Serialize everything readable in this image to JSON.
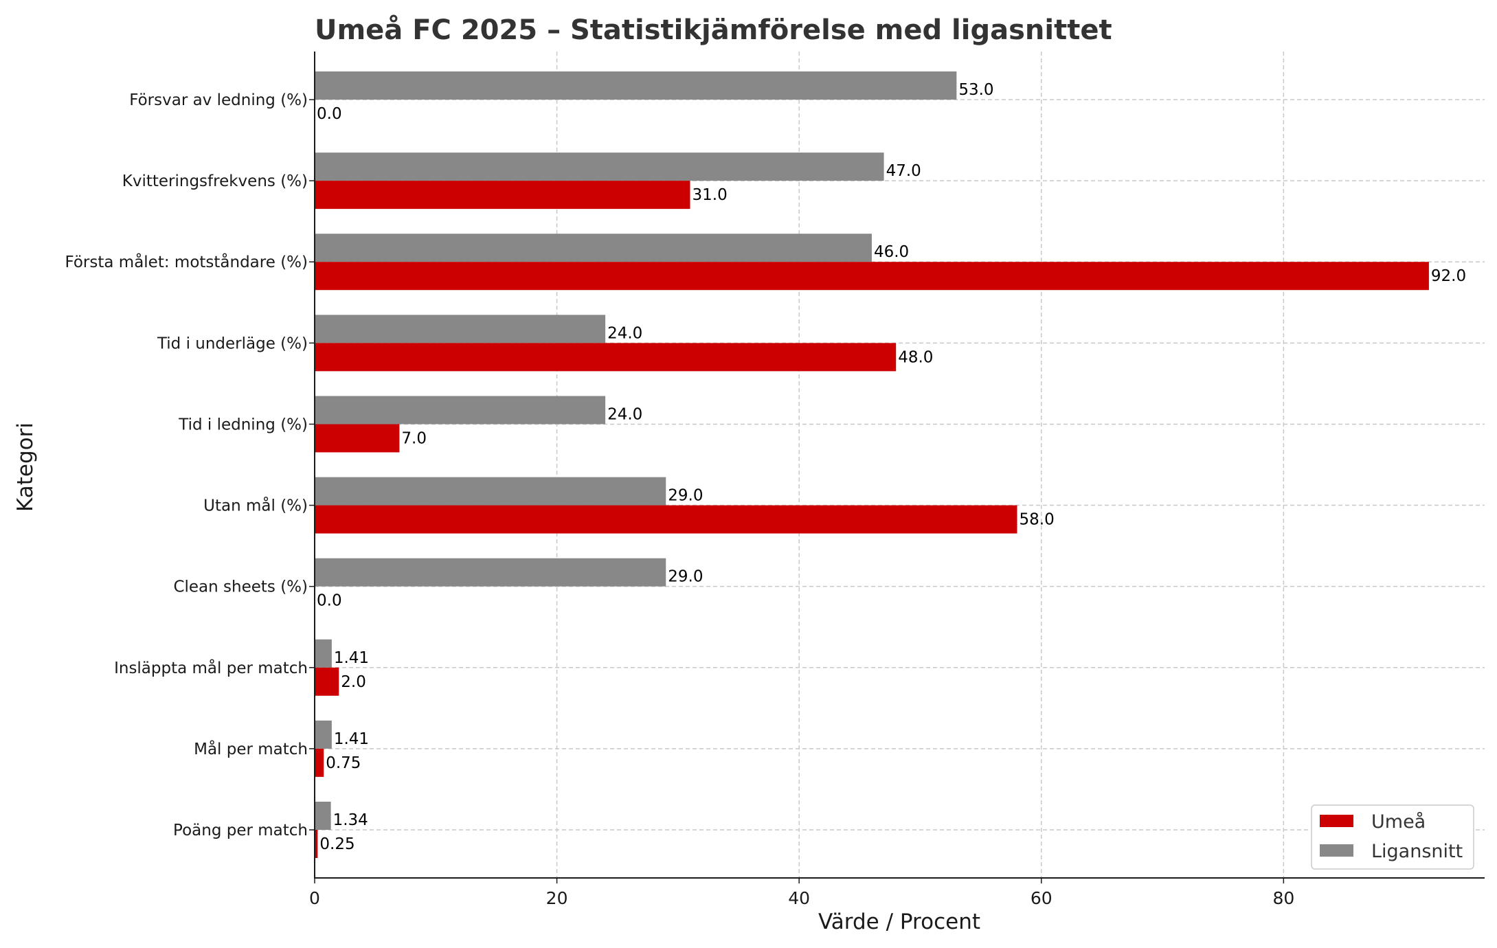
{
  "colors": {
    "umea": "#cc0000",
    "liga": "#888888",
    "grid": "#c8c8c8",
    "axis": "#1a1a1a",
    "title": "#333333"
  },
  "chart_data": {
    "type": "bar",
    "orientation": "horizontal",
    "title": "Umeå FC 2025 – Statistikjämförelse med ligasnittet",
    "xlabel": "Värde / Procent",
    "ylabel": "Kategori",
    "xlim": [
      0,
      96.6
    ],
    "xticks": [
      0,
      20,
      40,
      60,
      80
    ],
    "grid": true,
    "legend_position": "bottom-right",
    "categories": [
      "Poäng per match",
      "Mål per match",
      "Insläppta mål per match",
      "Clean sheets (%)",
      "Utan mål (%)",
      "Tid i ledning (%)",
      "Tid i underläge (%)",
      "Första målet: motståndare (%)",
      "Kvitteringsfrekvens (%)",
      "Försvar av ledning (%)"
    ],
    "series": [
      {
        "name": "Umeå",
        "color": "#cc0000",
        "values": [
          0.25,
          0.75,
          2.0,
          0.0,
          58.0,
          7.0,
          48.0,
          92.0,
          31.0,
          0.0
        ],
        "labels": [
          "0.25",
          "0.75",
          "2.0",
          "0.0",
          "58.0",
          "7.0",
          "48.0",
          "92.0",
          "31.0",
          "0.0"
        ]
      },
      {
        "name": "Ligansnitt",
        "color": "#888888",
        "values": [
          1.34,
          1.41,
          1.41,
          29.0,
          29.0,
          24.0,
          24.0,
          46.0,
          47.0,
          53.0
        ],
        "labels": [
          "1.34",
          "1.41",
          "1.41",
          "29.0",
          "29.0",
          "24.0",
          "24.0",
          "46.0",
          "47.0",
          "53.0"
        ]
      }
    ]
  }
}
